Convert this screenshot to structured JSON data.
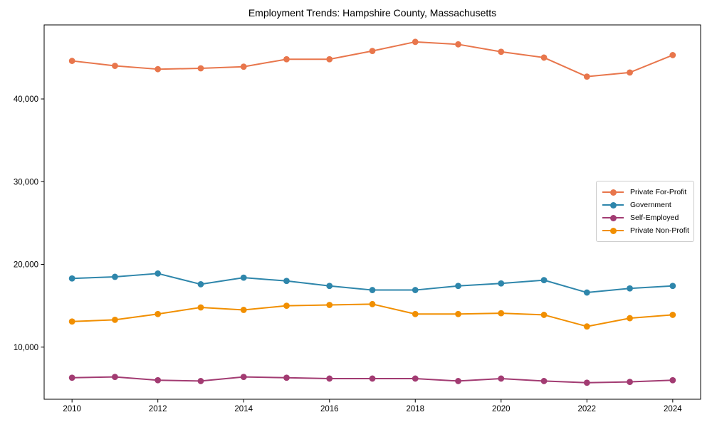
{
  "chart_data": {
    "type": "line",
    "title": "Employment Trends: Hampshire County, Massachusetts",
    "xlabel": "",
    "ylabel": "",
    "x": [
      2010,
      2011,
      2012,
      2013,
      2014,
      2015,
      2016,
      2017,
      2018,
      2019,
      2020,
      2021,
      2022,
      2023,
      2024
    ],
    "series": [
      {
        "name": "Private For-Profit",
        "color": "#E8764C",
        "values": [
          44600,
          44000,
          43600,
          43700,
          43900,
          44800,
          44800,
          45800,
          46900,
          46600,
          45700,
          45000,
          42700,
          43200,
          45300
        ]
      },
      {
        "name": "Government",
        "color": "#2E86AB",
        "values": [
          18300,
          18500,
          18900,
          17600,
          18400,
          18000,
          17400,
          16900,
          16900,
          17400,
          17700,
          18100,
          16600,
          17100,
          17400
        ]
      },
      {
        "name": "Self-Employed",
        "color": "#A23B72",
        "values": [
          6300,
          6400,
          6000,
          5900,
          6400,
          6300,
          6200,
          6200,
          6200,
          5900,
          6200,
          5900,
          5700,
          5800,
          6000
        ]
      },
      {
        "name": "Private Non-Profit",
        "color": "#F18F01",
        "values": [
          13100,
          13300,
          14000,
          14800,
          14500,
          15000,
          15100,
          15200,
          14000,
          14000,
          14100,
          13900,
          12500,
          13500,
          13900
        ]
      }
    ],
    "xlim": [
      2009.35,
      2024.65
    ],
    "ylim": [
      3700,
      48950
    ],
    "xticks": [
      2010,
      2012,
      2014,
      2016,
      2018,
      2020,
      2022,
      2024
    ],
    "xtick_labels": [
      "2010",
      "2012",
      "2014",
      "2016",
      "2018",
      "2020",
      "2022",
      "2024"
    ],
    "yticks": [
      10000,
      20000,
      30000,
      40000
    ],
    "ytick_labels": [
      "10,000",
      "20,000",
      "30,000",
      "40,000"
    ],
    "grid": false,
    "legend_position": "center right",
    "marker": "circle",
    "axis_color": "#000000",
    "background": "#ffffff"
  }
}
